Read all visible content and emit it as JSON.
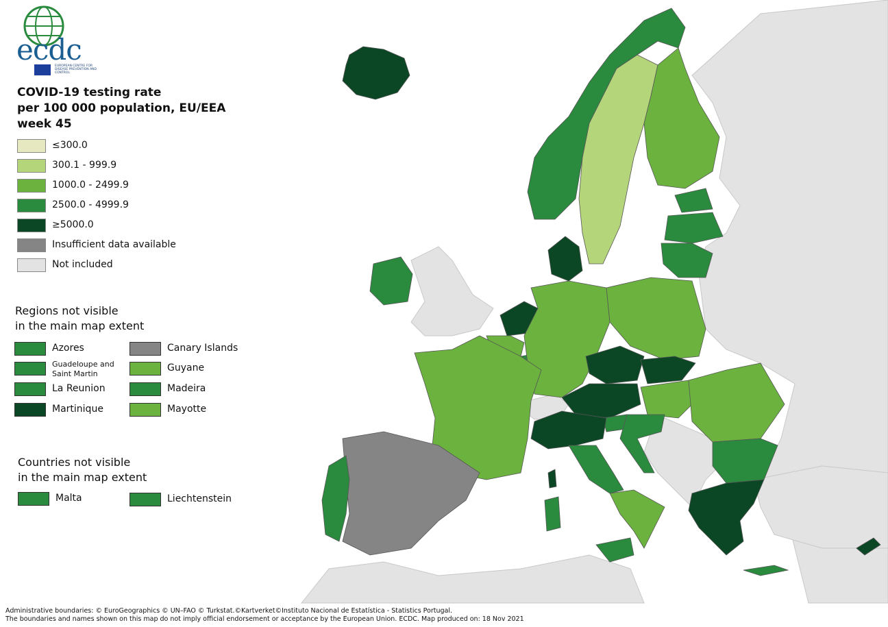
{
  "logo": {
    "text": "ecdc",
    "subtitle": "EUROPEAN CENTRE FOR DISEASE PREVENTION AND CONTROL"
  },
  "title": {
    "line1": "COVID-19 testing rate",
    "line2": "per 100 000 population, EU/EEA",
    "line3": "week 45"
  },
  "colors": {
    "c1": "#e6e9bf",
    "c2": "#b5d57a",
    "c3": "#6bb33e",
    "c4": "#2a8a3e",
    "c5": "#0c4725",
    "insufficient": "#858585",
    "not_included": "#e3e3e3",
    "sea": "#ffffff",
    "border": "#555555"
  },
  "legend": [
    {
      "label": "≤300.0",
      "color": "#e6e9bf"
    },
    {
      "label": "300.1 - 999.9",
      "color": "#b5d57a"
    },
    {
      "label": "1000.0 - 2499.9",
      "color": "#6bb33e"
    },
    {
      "label": "2500.0 - 4999.9",
      "color": "#2a8a3e"
    },
    {
      "label": "≥5000.0",
      "color": "#0c4725"
    },
    {
      "label": "Insufficient data available",
      "color": "#858585"
    },
    {
      "label": "Not included",
      "color": "#e3e3e3"
    }
  ],
  "regions_section": {
    "title_line1": "Regions not visible",
    "title_line2": "in the main map extent",
    "items": [
      {
        "label": "Azores",
        "color": "#2a8a3e"
      },
      {
        "label": "Guadeloupe and Saint Martin",
        "color": "#2a8a3e"
      },
      {
        "label": "La Reunion",
        "color": "#2a8a3e"
      },
      {
        "label": "Martinique",
        "color": "#0c4725"
      },
      {
        "label": "Canary Islands",
        "color": "#858585"
      },
      {
        "label": "Guyane",
        "color": "#6bb33e"
      },
      {
        "label": "Madeira",
        "color": "#2a8a3e"
      },
      {
        "label": "Mayotte",
        "color": "#6bb33e"
      }
    ]
  },
  "countries_section": {
    "title_line1": "Countries not visible",
    "title_line2": "in the main map extent",
    "items": [
      {
        "label": "Malta",
        "color": "#2a8a3e"
      },
      {
        "label": "Liechtenstein",
        "color": "#2a8a3e"
      }
    ]
  },
  "map_regions": [
    {
      "name": "iceland",
      "cls": 5
    },
    {
      "name": "norway",
      "cls": 4
    },
    {
      "name": "sweden",
      "cls": 2
    },
    {
      "name": "finland",
      "cls": 3
    },
    {
      "name": "estonia",
      "cls": 4
    },
    {
      "name": "latvia",
      "cls": 4
    },
    {
      "name": "lithuania",
      "cls": 4
    },
    {
      "name": "denmark",
      "cls": 5
    },
    {
      "name": "ireland",
      "cls": 4
    },
    {
      "name": "netherlands",
      "cls": 5
    },
    {
      "name": "belgium",
      "cls": 3
    },
    {
      "name": "luxembourg",
      "cls": 4
    },
    {
      "name": "germany",
      "cls": 3
    },
    {
      "name": "poland",
      "cls": 3
    },
    {
      "name": "czechia",
      "cls": 5
    },
    {
      "name": "slovakia",
      "cls": 5
    },
    {
      "name": "austria",
      "cls": 5
    },
    {
      "name": "hungary",
      "cls": 3
    },
    {
      "name": "slovenia",
      "cls": 4
    },
    {
      "name": "croatia",
      "cls": 4
    },
    {
      "name": "romania",
      "cls": 3
    },
    {
      "name": "bulgaria",
      "cls": 4
    },
    {
      "name": "greece",
      "cls": 5
    },
    {
      "name": "cyprus",
      "cls": 5
    },
    {
      "name": "france",
      "cls": 3
    },
    {
      "name": "spain",
      "cls": 6
    },
    {
      "name": "portugal",
      "cls": 4
    },
    {
      "name": "italy-north",
      "cls": 5
    },
    {
      "name": "italy-centre",
      "cls": 4
    },
    {
      "name": "italy-south",
      "cls": 3
    },
    {
      "name": "sardinia",
      "cls": 4
    },
    {
      "name": "sicily",
      "cls": 4
    },
    {
      "name": "corsica",
      "cls": 5
    },
    {
      "name": "crete",
      "cls": 4
    }
  ],
  "footer": {
    "line1": "Administrative boundaries: © EuroGeographics © UN–FAO © Turkstat.©Kartverket©Instituto Nacional de Estatística - Statistics Portugal.",
    "line2": "The boundaries and names shown on this map do not imply official endorsement or acceptance by the European Union. ECDC. Map produced on: 18 Nov 2021"
  }
}
